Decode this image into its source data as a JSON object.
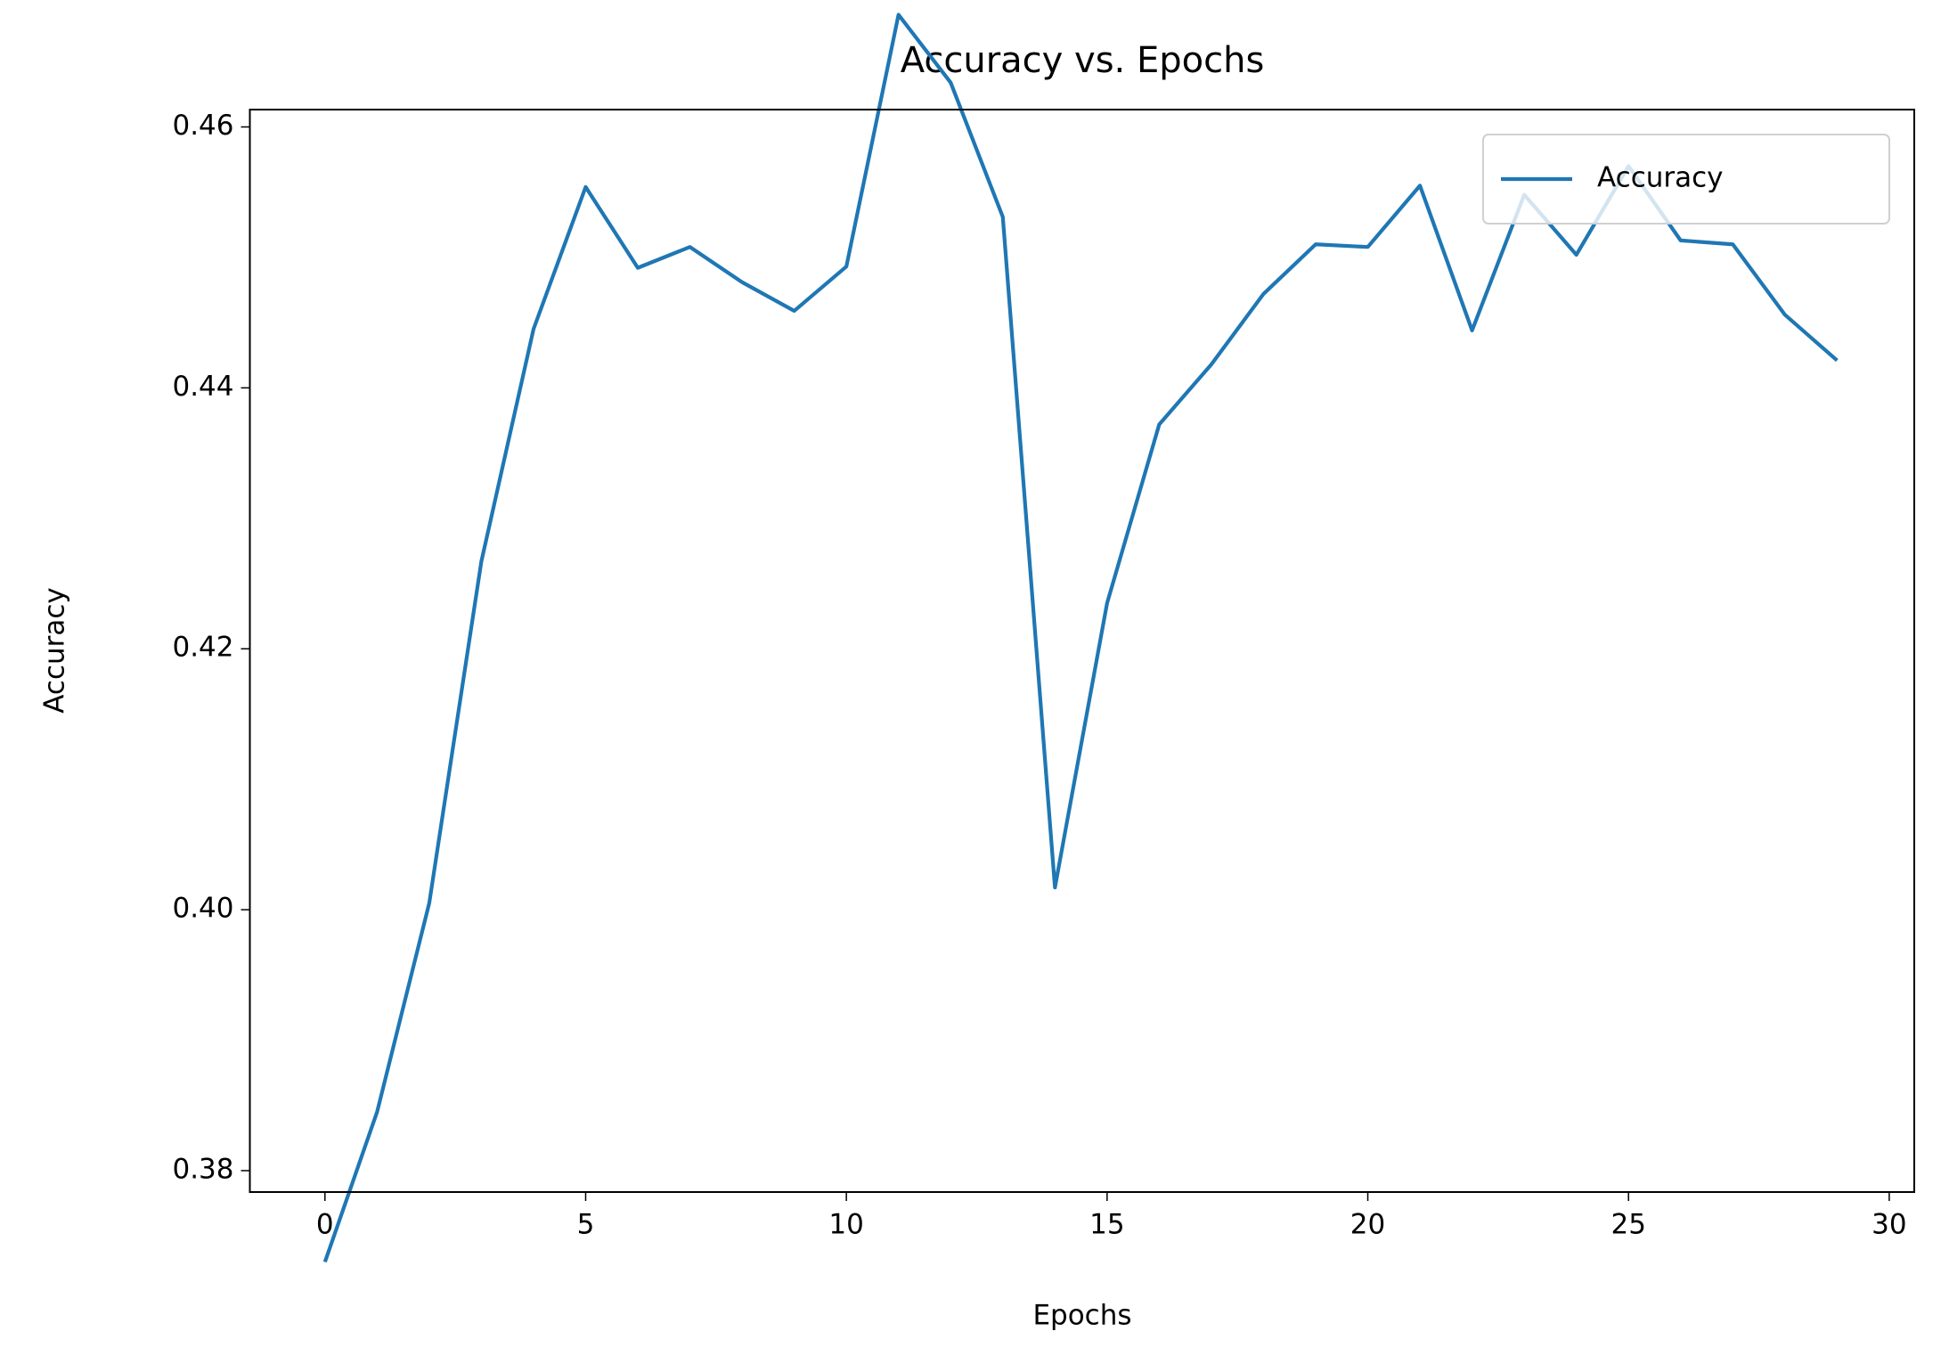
{
  "chart_data": {
    "type": "line",
    "title": "Accuracy vs. Epochs",
    "x_label": "Epochs",
    "y_label": "Accuracy",
    "x": [
      0,
      1,
      2,
      3,
      4,
      5,
      6,
      7,
      8,
      9,
      10,
      11,
      12,
      13,
      14,
      15,
      16,
      17,
      18,
      19,
      20,
      21,
      22,
      23,
      24,
      25,
      26,
      27,
      28,
      29
    ],
    "series": [
      {
        "name": "Accuracy",
        "color": "#1f77b4",
        "values": [
          0.373,
          0.3845,
          0.4005,
          0.4267,
          0.4445,
          0.4554,
          0.4492,
          0.4508,
          0.4481,
          0.4459,
          0.4493,
          0.4686,
          0.4634,
          0.4531,
          0.4017,
          0.4235,
          0.4372,
          0.4418,
          0.4472,
          0.451,
          0.4508,
          0.4555,
          0.4444,
          0.4548,
          0.4502,
          0.457,
          0.4513,
          0.451,
          0.4456,
          0.4421
        ]
      }
    ],
    "xlim": [
      -1.44,
      30.48
    ],
    "xticks": [
      0,
      5,
      10,
      15,
      20,
      25,
      30
    ],
    "ylim": [
      0.37836,
      0.46133
    ],
    "yticks": [
      {
        "value": 0.38,
        "label": "0.38"
      },
      {
        "value": 0.4,
        "label": "0.40"
      },
      {
        "value": 0.42,
        "label": "0.42"
      },
      {
        "value": 0.44,
        "label": "0.44"
      },
      {
        "value": 0.46,
        "label": "0.46"
      }
    ],
    "grid": false,
    "legend": "upper right"
  }
}
